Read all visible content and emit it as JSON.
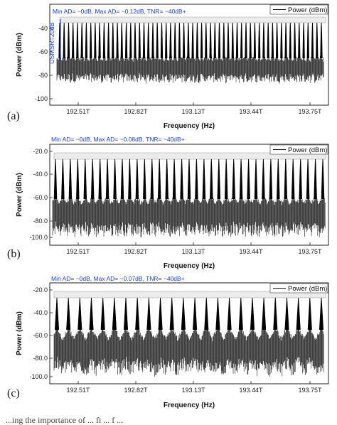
{
  "chart_data": [
    {
      "type": "line",
      "panel_label": "(a)",
      "annotation": "Min AD= ~0dB, Max AD= ~0.12dB, TNR= ~40dB+",
      "side_annotation": "USMSR=20dB",
      "legend": "Power (dBm)",
      "legend_position": "top-right",
      "xlabel": "Frequency (Hz)",
      "ylabel": "Power (dBm)",
      "x_ticks": [
        "192.51T",
        "192.82T",
        "193.13T",
        "193.44T",
        "193.75T"
      ],
      "y_ticks": [
        "-40",
        "-60",
        "-80",
        "-100"
      ],
      "xlim": [
        192.45,
        193.78
      ],
      "ylim": [
        -108,
        -20
      ],
      "series": [
        {
          "name": "Power (dBm)",
          "line_count": 60,
          "peak_level": -31,
          "noise_floor": -90
        }
      ]
    },
    {
      "type": "line",
      "panel_label": "(b)",
      "annotation": "Min AD= ~0dB, Max AD= ~0.08dB, TNR= ~40dB+",
      "legend": "Power (dBm)",
      "legend_position": "top-right",
      "xlabel": "Frequency (Hz)",
      "ylabel": "Power (dBm)",
      "x_ticks": [
        "192.51T",
        "192.82T",
        "193.13T",
        "193.44T",
        "193.75T"
      ],
      "y_ticks": [
        "-20.0",
        "-40.0",
        "-60.0",
        "-80.0",
        "-100.0"
      ],
      "xlim": [
        192.45,
        193.78
      ],
      "ylim": [
        -105,
        -15
      ],
      "series": [
        {
          "name": "Power (dBm)",
          "line_count": 37,
          "peak_level": -26,
          "noise_floor": -85
        }
      ]
    },
    {
      "type": "line",
      "panel_label": "(c)",
      "annotation": "Min AD= ~0dB, Max AD= ~0.07dB, TNR= ~40dB+",
      "legend": "Power (dBm)",
      "legend_position": "top-right",
      "xlabel": "Frequency (Hz)",
      "ylabel": "Power (dBm)",
      "x_ticks": [
        "192.51T",
        "192.82T",
        "193.13T",
        "193.44T",
        "193.75T"
      ],
      "y_ticks": [
        "-20.0",
        "-40.0",
        "-60.0",
        "-80.0",
        "-100.0"
      ],
      "xlim": [
        192.45,
        193.78
      ],
      "ylim": [
        -105,
        -15
      ],
      "series": [
        {
          "name": "Power (dBm)",
          "line_count": 24,
          "peak_level": -26,
          "noise_floor": -85
        }
      ]
    }
  ],
  "caption_fragment": "...ing the importance of ... fi ... f ... "
}
